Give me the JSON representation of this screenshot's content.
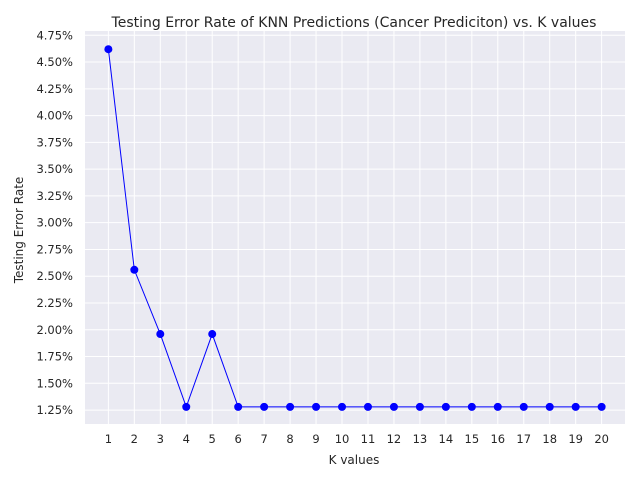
{
  "chart_data": {
    "type": "line",
    "title": "Testing Error Rate of KNN Predictions (Cancer Prediciton) vs. K values",
    "xlabel": "K values",
    "ylabel": "Testing Error Rate",
    "x": [
      1,
      2,
      3,
      4,
      5,
      6,
      7,
      8,
      9,
      10,
      11,
      12,
      13,
      14,
      15,
      16,
      17,
      18,
      19,
      20
    ],
    "series": [
      {
        "values": [
          4.62,
          2.56,
          1.96,
          1.28,
          1.96,
          1.28,
          1.28,
          1.28,
          1.28,
          1.28,
          1.28,
          1.28,
          1.28,
          1.28,
          1.28,
          1.28,
          1.28,
          1.28,
          1.28,
          1.28
        ],
        "color": "#0000ff",
        "marker": "circle"
      }
    ],
    "xlim": [
      0.1,
      20.9
    ],
    "ylim": [
      1.12,
      4.79
    ],
    "yticks": [
      1.25,
      1.5,
      1.75,
      2.0,
      2.25,
      2.5,
      2.75,
      3.0,
      3.25,
      3.5,
      3.75,
      4.0,
      4.25,
      4.5,
      4.75
    ],
    "ytick_labels": [
      "1.25%",
      "1.50%",
      "1.75%",
      "2.00%",
      "2.25%",
      "2.50%",
      "2.75%",
      "3.00%",
      "3.25%",
      "3.50%",
      "3.75%",
      "4.00%",
      "4.25%",
      "4.50%",
      "4.75%"
    ],
    "xticks": [
      1,
      2,
      3,
      4,
      5,
      6,
      7,
      8,
      9,
      10,
      11,
      12,
      13,
      14,
      15,
      16,
      17,
      18,
      19,
      20
    ],
    "xtick_labels": [
      "1",
      "2",
      "3",
      "4",
      "5",
      "6",
      "7",
      "8",
      "9",
      "10",
      "11",
      "12",
      "13",
      "14",
      "15",
      "16",
      "17",
      "18",
      "19",
      "20"
    ],
    "grid": true,
    "legend": "none",
    "background_color": "#eaeaf2",
    "grid_color": "#ffffff"
  }
}
